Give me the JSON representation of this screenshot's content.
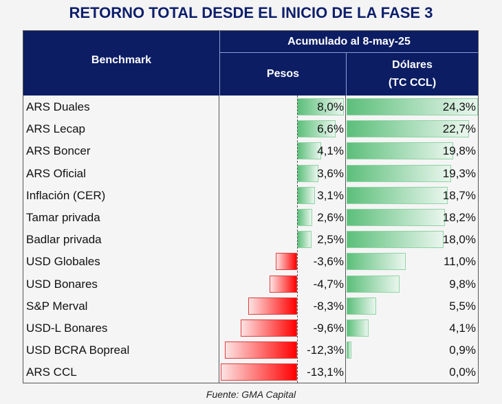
{
  "chart_data": {
    "type": "table",
    "title": "RETORNO TOTAL DESDE EL INICIO DE LA FASE 3",
    "header": {
      "benchmark": "Benchmark",
      "group": "Acumulado al 8-may-25",
      "pesos": "Pesos",
      "dolares_line1": "Dólares",
      "dolares_line2": "(TC CCL)"
    },
    "rows": [
      {
        "name": "ARS Duales",
        "pesos": 8.0,
        "pesos_label": "8,0%",
        "dolares": 24.3,
        "dolares_label": "24,3%"
      },
      {
        "name": "ARS Lecap",
        "pesos": 6.6,
        "pesos_label": "6,6%",
        "dolares": 22.7,
        "dolares_label": "22,7%"
      },
      {
        "name": "ARS Boncer",
        "pesos": 4.1,
        "pesos_label": "4,1%",
        "dolares": 19.8,
        "dolares_label": "19,8%"
      },
      {
        "name": "ARS Oficial",
        "pesos": 3.6,
        "pesos_label": "3,6%",
        "dolares": 19.3,
        "dolares_label": "19,3%"
      },
      {
        "name": "Inflación (CER)",
        "pesos": 3.1,
        "pesos_label": "3,1%",
        "dolares": 18.7,
        "dolares_label": "18,7%"
      },
      {
        "name": "Tamar privada",
        "pesos": 2.6,
        "pesos_label": "2,6%",
        "dolares": 18.2,
        "dolares_label": "18,2%"
      },
      {
        "name": "Badlar privada",
        "pesos": 2.5,
        "pesos_label": "2,5%",
        "dolares": 18.0,
        "dolares_label": "18,0%"
      },
      {
        "name": "USD Globales",
        "pesos": -3.6,
        "pesos_label": "-3,6%",
        "dolares": 11.0,
        "dolares_label": "11,0%"
      },
      {
        "name": "USD Bonares",
        "pesos": -4.7,
        "pesos_label": "-4,7%",
        "dolares": 9.8,
        "dolares_label": "9,8%"
      },
      {
        "name": "S&P Merval",
        "pesos": -8.3,
        "pesos_label": "-8,3%",
        "dolares": 5.5,
        "dolares_label": "5,5%"
      },
      {
        "name": "USD-L Bonares",
        "pesos": -9.6,
        "pesos_label": "-9,6%",
        "dolares": 4.1,
        "dolares_label": "4,1%"
      },
      {
        "name": "USD BCRA Bopreal",
        "pesos": -12.3,
        "pesos_label": "-12,3%",
        "dolares": 0.9,
        "dolares_label": "0,9%"
      },
      {
        "name": "ARS CCL",
        "pesos": -13.1,
        "pesos_label": "-13,1%",
        "dolares": 0.0,
        "dolares_label": "0,0%"
      }
    ],
    "source": "Fuente: GMA Capital",
    "colors": {
      "header": "#0c1d63",
      "positive": "#5cbf7a",
      "negative": "#ff0000"
    }
  }
}
